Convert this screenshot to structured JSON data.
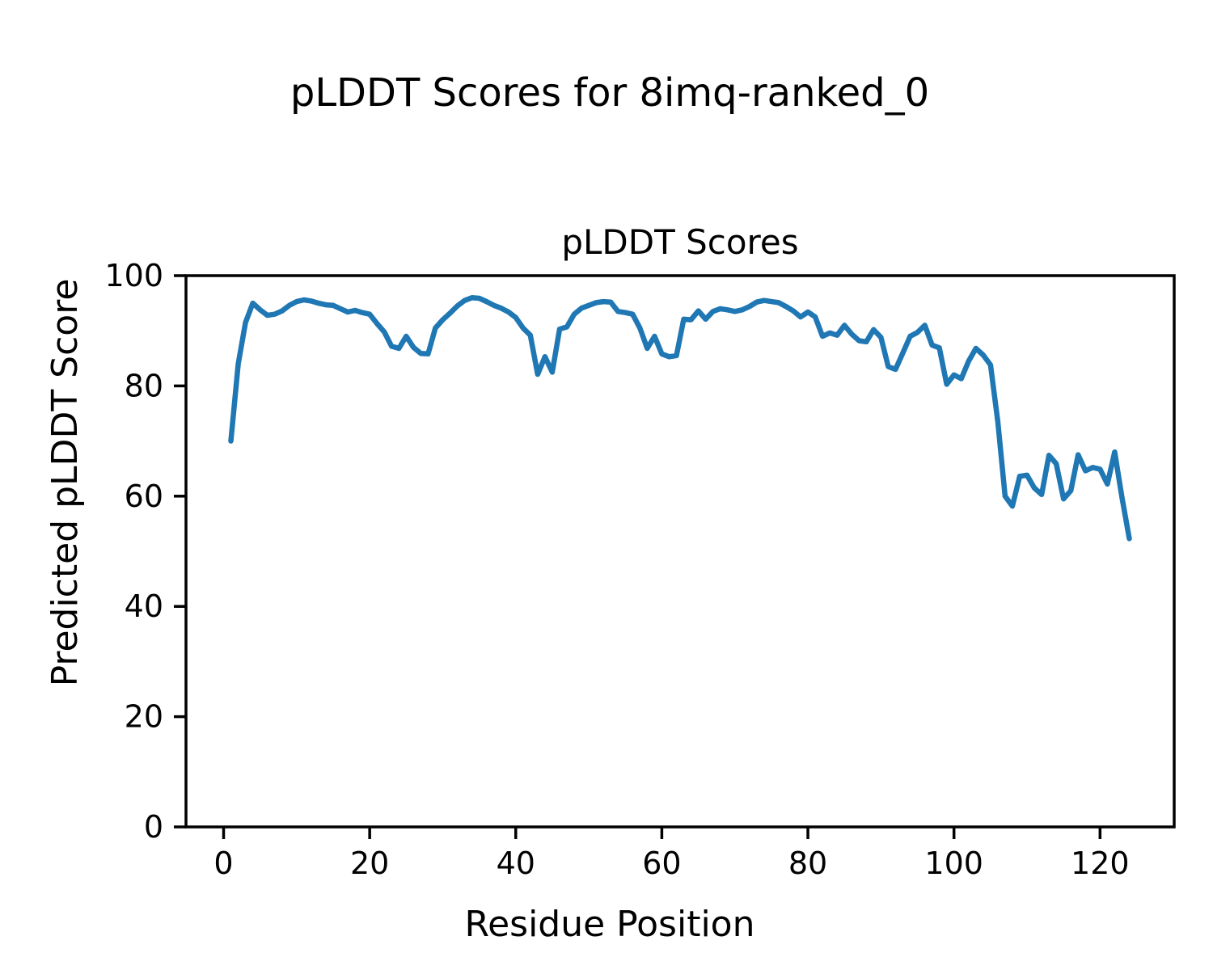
{
  "figure": {
    "suptitle": "pLDDT Scores for 8imq-ranked_0",
    "background": "#ffffff",
    "text_color": "#000000"
  },
  "chart_data": {
    "type": "line",
    "title": "pLDDT Scores",
    "xlabel": "Residue Position",
    "ylabel": "Predicted pLDDT Score",
    "xticks": [
      0,
      20,
      40,
      60,
      80,
      100,
      120
    ],
    "yticks": [
      0,
      20,
      40,
      60,
      80,
      100
    ],
    "xlim": [
      -5.15,
      130.15
    ],
    "ylim": [
      0,
      100
    ],
    "grid": false,
    "legend": null,
    "series": [
      {
        "name": "pLDDT",
        "color": "#1f77b4",
        "x": [
          1,
          2,
          3,
          4,
          5,
          6,
          7,
          8,
          9,
          10,
          11,
          12,
          13,
          14,
          15,
          16,
          17,
          18,
          19,
          20,
          21,
          22,
          23,
          24,
          25,
          26,
          27,
          28,
          29,
          30,
          31,
          32,
          33,
          34,
          35,
          36,
          37,
          38,
          39,
          40,
          41,
          42,
          43,
          44,
          45,
          46,
          47,
          48,
          49,
          50,
          51,
          52,
          53,
          54,
          55,
          56,
          57,
          58,
          59,
          60,
          61,
          62,
          63,
          64,
          65,
          66,
          67,
          68,
          69,
          70,
          71,
          72,
          73,
          74,
          75,
          76,
          77,
          78,
          79,
          80,
          81,
          82,
          83,
          84,
          85,
          86,
          87,
          88,
          89,
          90,
          91,
          92,
          93,
          94,
          95,
          96,
          97,
          98,
          99,
          100,
          101,
          102,
          103,
          104,
          105,
          106,
          107,
          108,
          109,
          110,
          111,
          112,
          113,
          114,
          115,
          116,
          117,
          118,
          119,
          120,
          121,
          122,
          123,
          124
        ],
        "values": [
          70.0,
          84.0,
          91.5,
          95.0,
          93.8,
          92.8,
          93.0,
          93.6,
          94.6,
          95.3,
          95.6,
          95.4,
          95.0,
          94.7,
          94.6,
          94.0,
          93.4,
          93.7,
          93.3,
          93.0,
          91.3,
          89.8,
          87.2,
          86.8,
          89.0,
          87.0,
          85.9,
          85.8,
          90.5,
          92.0,
          93.2,
          94.5,
          95.5,
          96.0,
          95.9,
          95.3,
          94.6,
          94.1,
          93.4,
          92.4,
          90.5,
          89.2,
          82.1,
          85.3,
          82.5,
          90.3,
          90.7,
          93.0,
          94.1,
          94.6,
          95.1,
          95.3,
          95.2,
          93.5,
          93.3,
          93.0,
          90.5,
          86.8,
          89.0,
          85.8,
          85.3,
          85.5,
          92.1,
          92.0,
          93.6,
          92.1,
          93.5,
          94.0,
          93.8,
          93.5,
          93.8,
          94.4,
          95.2,
          95.5,
          95.3,
          95.1,
          94.4,
          93.6,
          92.5,
          93.4,
          92.5,
          89.0,
          89.6,
          89.2,
          91.0,
          89.4,
          88.2,
          88.0,
          90.2,
          88.8,
          83.5,
          83.0,
          86.0,
          89.0,
          89.7,
          91.0,
          87.4,
          86.9,
          80.3,
          82.0,
          81.3,
          84.5,
          86.8,
          85.6,
          83.8,
          73.5,
          60.0,
          58.2,
          63.6,
          63.8,
          61.5,
          60.3,
          67.4,
          65.9,
          59.5,
          61.0,
          67.5,
          64.6,
          65.2,
          64.9,
          62.2,
          68.0,
          59.8,
          52.3
        ]
      }
    ]
  }
}
